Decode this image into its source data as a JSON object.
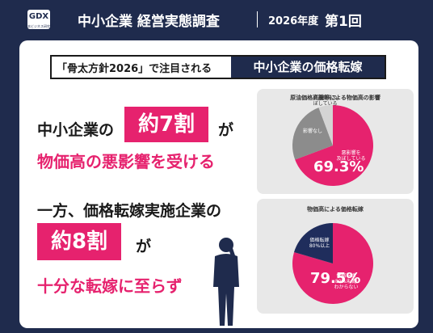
{
  "header": {
    "logo": "GDX",
    "logo_sub": "日本ビジネス研究所",
    "title": "中小企業 経営実態調査",
    "edition": "2026年度",
    "issue": "第1回"
  },
  "headline": {
    "lead": "「骨太方針2026」で注目される",
    "highlight": "中小企業の価格転嫁"
  },
  "finding1": {
    "pre": "中小企業の",
    "box": "約7割",
    "post": "が",
    "line2": "物価高の悪影響を受ける"
  },
  "finding2": {
    "line1": "一方、価格転嫁実施企業の",
    "box": "約8割",
    "post": "が",
    "line3": "十分な転嫁に至らず"
  },
  "chart_data": [
    {
      "type": "pie",
      "title": "原油価格高騰等による物価高の影響",
      "categories": [
        "悪影響を\n及ぼしている",
        "影響なし",
        "好影響を及\nぼしている"
      ],
      "values": [
        69.3,
        25.0,
        5.7
      ],
      "value_labels": [
        "69.3%",
        null,
        null
      ],
      "colors": [
        "#e6226e",
        "#8c8c8c",
        "#d4d4d4"
      ]
    },
    {
      "type": "pie",
      "title": "物価高による価格転嫁",
      "categories": [
        "価格転嫁\n80%未満/\nわからない",
        "価格転嫁\n80%以上"
      ],
      "values": [
        79.5,
        20.5
      ],
      "value_labels": [
        "79.5%",
        null
      ],
      "colors": [
        "#e6226e",
        "#1f2d5c"
      ]
    }
  ]
}
